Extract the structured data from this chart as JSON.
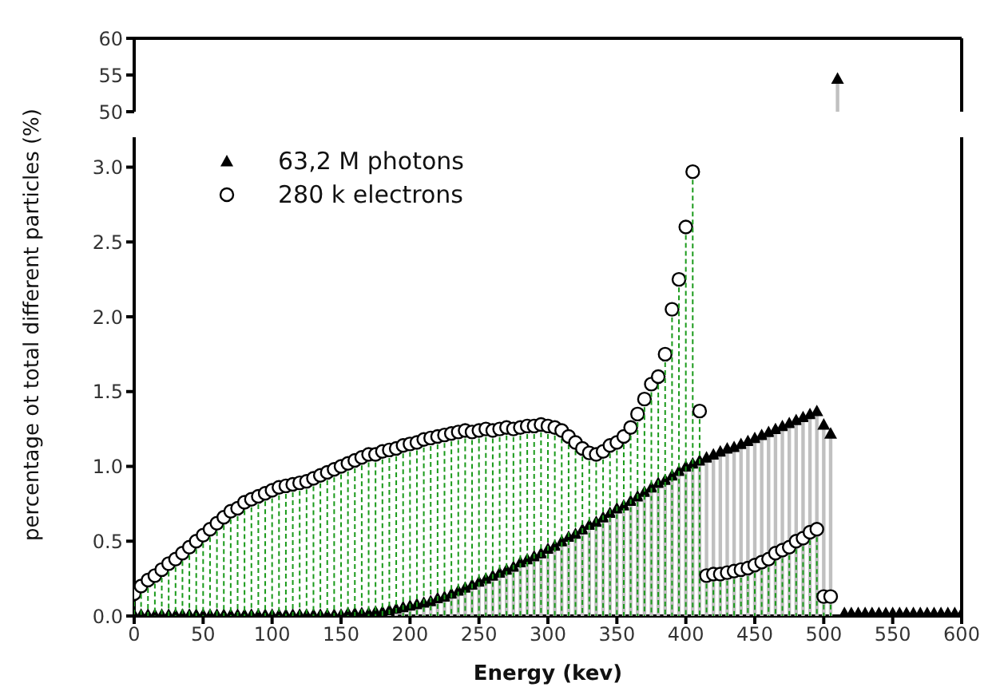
{
  "chart_data": [
    {
      "type": "lollipop",
      "xlim": [
        0,
        600
      ],
      "xticks": [
        0,
        50,
        100,
        150,
        200,
        250,
        300,
        350,
        400,
        450,
        500,
        550,
        600
      ],
      "ylim": [
        50,
        60
      ],
      "yticks": [
        50,
        55,
        60
      ],
      "tick_labels": "y",
      "series": [
        {
          "color": "#000000",
          "marker": "triangle",
          "line_style": "solid",
          "x": [
            510
          ],
          "values": [
            54.5
          ]
        }
      ]
    },
    {
      "type": "lollipop",
      "xlabel": "Energy (kev)",
      "ylabel": "percentage ot total different particles (%)",
      "xlim": [
        0,
        600
      ],
      "xticks": [
        0,
        50,
        100,
        150,
        200,
        250,
        300,
        350,
        400,
        450,
        500,
        550,
        600
      ],
      "ylim": [
        0,
        3.2
      ],
      "yticks": [
        {
          "value": 0,
          "label": "0.0"
        },
        0.5,
        {
          "value": 1,
          "label": "1.0"
        },
        1.5,
        {
          "value": 2,
          "label": "2.0"
        },
        2.5,
        {
          "value": 3,
          "label": "3.0"
        }
      ],
      "legend": "top left",
      "series": [
        {
          "name": "63,2 M photons",
          "color": "#000000",
          "marker": "triangle",
          "line_style": "solid",
          "x": [
            0,
            5,
            10,
            15,
            20,
            25,
            30,
            35,
            40,
            45,
            50,
            55,
            60,
            65,
            70,
            75,
            80,
            85,
            90,
            95,
            100,
            105,
            110,
            115,
            120,
            125,
            130,
            135,
            140,
            145,
            150,
            155,
            160,
            165,
            170,
            175,
            180,
            185,
            190,
            195,
            200,
            205,
            210,
            215,
            220,
            225,
            230,
            235,
            240,
            245,
            250,
            255,
            260,
            265,
            270,
            275,
            280,
            285,
            290,
            295,
            300,
            305,
            310,
            315,
            320,
            325,
            330,
            335,
            340,
            345,
            350,
            355,
            360,
            365,
            370,
            375,
            380,
            385,
            390,
            395,
            400,
            405,
            410,
            415,
            420,
            425,
            430,
            435,
            440,
            445,
            450,
            455,
            460,
            465,
            470,
            475,
            480,
            485,
            490,
            495,
            500,
            505,
            515,
            520,
            525,
            530,
            535,
            540,
            545,
            550,
            555,
            560,
            565,
            570,
            575,
            580,
            585,
            590,
            595,
            600
          ],
          "values": [
            0.01,
            0.01,
            0.01,
            0.01,
            0.01,
            0.01,
            0.01,
            0.01,
            0.01,
            0.01,
            0.01,
            0.01,
            0.01,
            0.01,
            0.01,
            0.01,
            0.01,
            0.01,
            0.01,
            0.01,
            0.01,
            0.01,
            0.01,
            0.01,
            0.01,
            0.01,
            0.01,
            0.01,
            0.01,
            0.01,
            0.01,
            0.02,
            0.02,
            0.02,
            0.02,
            0.03,
            0.03,
            0.04,
            0.05,
            0.06,
            0.07,
            0.08,
            0.09,
            0.1,
            0.12,
            0.13,
            0.15,
            0.17,
            0.19,
            0.21,
            0.23,
            0.25,
            0.27,
            0.29,
            0.31,
            0.33,
            0.36,
            0.38,
            0.4,
            0.42,
            0.45,
            0.47,
            0.5,
            0.53,
            0.55,
            0.58,
            0.61,
            0.63,
            0.66,
            0.69,
            0.72,
            0.74,
            0.77,
            0.8,
            0.83,
            0.86,
            0.89,
            0.91,
            0.94,
            0.97,
            1.0,
            1.02,
            1.04,
            1.06,
            1.08,
            1.1,
            1.12,
            1.13,
            1.15,
            1.17,
            1.19,
            1.21,
            1.23,
            1.25,
            1.27,
            1.29,
            1.31,
            1.33,
            1.35,
            1.37,
            1.28,
            1.22,
            0.02,
            0.02,
            0.02,
            0.02,
            0.02,
            0.02,
            0.02,
            0.02,
            0.02,
            0.02,
            0.02,
            0.02,
            0.02,
            0.02,
            0.02,
            0.02,
            0.02,
            0.02
          ]
        },
        {
          "name": "280 k electrons",
          "color": "#000000",
          "marker": "circle",
          "line_style": "dashed",
          "x": [
            0,
            5,
            10,
            15,
            20,
            25,
            30,
            35,
            40,
            45,
            50,
            55,
            60,
            65,
            70,
            75,
            80,
            85,
            90,
            95,
            100,
            105,
            110,
            115,
            120,
            125,
            130,
            135,
            140,
            145,
            150,
            155,
            160,
            165,
            170,
            175,
            180,
            185,
            190,
            195,
            200,
            205,
            210,
            215,
            220,
            225,
            230,
            235,
            240,
            245,
            250,
            255,
            260,
            265,
            270,
            275,
            280,
            285,
            290,
            295,
            300,
            305,
            310,
            315,
            320,
            325,
            330,
            335,
            340,
            345,
            350,
            355,
            360,
            365,
            370,
            375,
            380,
            385,
            390,
            395,
            400,
            405,
            410,
            415,
            420,
            425,
            430,
            435,
            440,
            445,
            450,
            455,
            460,
            465,
            470,
            475,
            480,
            485,
            490,
            495,
            500,
            505
          ],
          "values": [
            0.15,
            0.2,
            0.24,
            0.27,
            0.31,
            0.35,
            0.38,
            0.42,
            0.46,
            0.5,
            0.54,
            0.58,
            0.62,
            0.66,
            0.7,
            0.72,
            0.76,
            0.78,
            0.8,
            0.82,
            0.84,
            0.86,
            0.87,
            0.88,
            0.89,
            0.9,
            0.92,
            0.94,
            0.96,
            0.98,
            1.0,
            1.02,
            1.04,
            1.06,
            1.08,
            1.08,
            1.1,
            1.11,
            1.12,
            1.14,
            1.15,
            1.16,
            1.18,
            1.19,
            1.2,
            1.21,
            1.22,
            1.23,
            1.24,
            1.23,
            1.24,
            1.25,
            1.24,
            1.25,
            1.26,
            1.25,
            1.26,
            1.27,
            1.27,
            1.28,
            1.27,
            1.26,
            1.24,
            1.2,
            1.16,
            1.12,
            1.09,
            1.08,
            1.1,
            1.14,
            1.16,
            1.2,
            1.26,
            1.35,
            1.45,
            1.55,
            1.6,
            1.75,
            2.05,
            2.25,
            2.6,
            2.97,
            1.37,
            0.27,
            0.28,
            0.28,
            0.29,
            0.3,
            0.31,
            0.32,
            0.34,
            0.36,
            0.38,
            0.42,
            0.44,
            0.46,
            0.5,
            0.52,
            0.56,
            0.58,
            0.13,
            0.13
          ]
        }
      ]
    }
  ]
}
